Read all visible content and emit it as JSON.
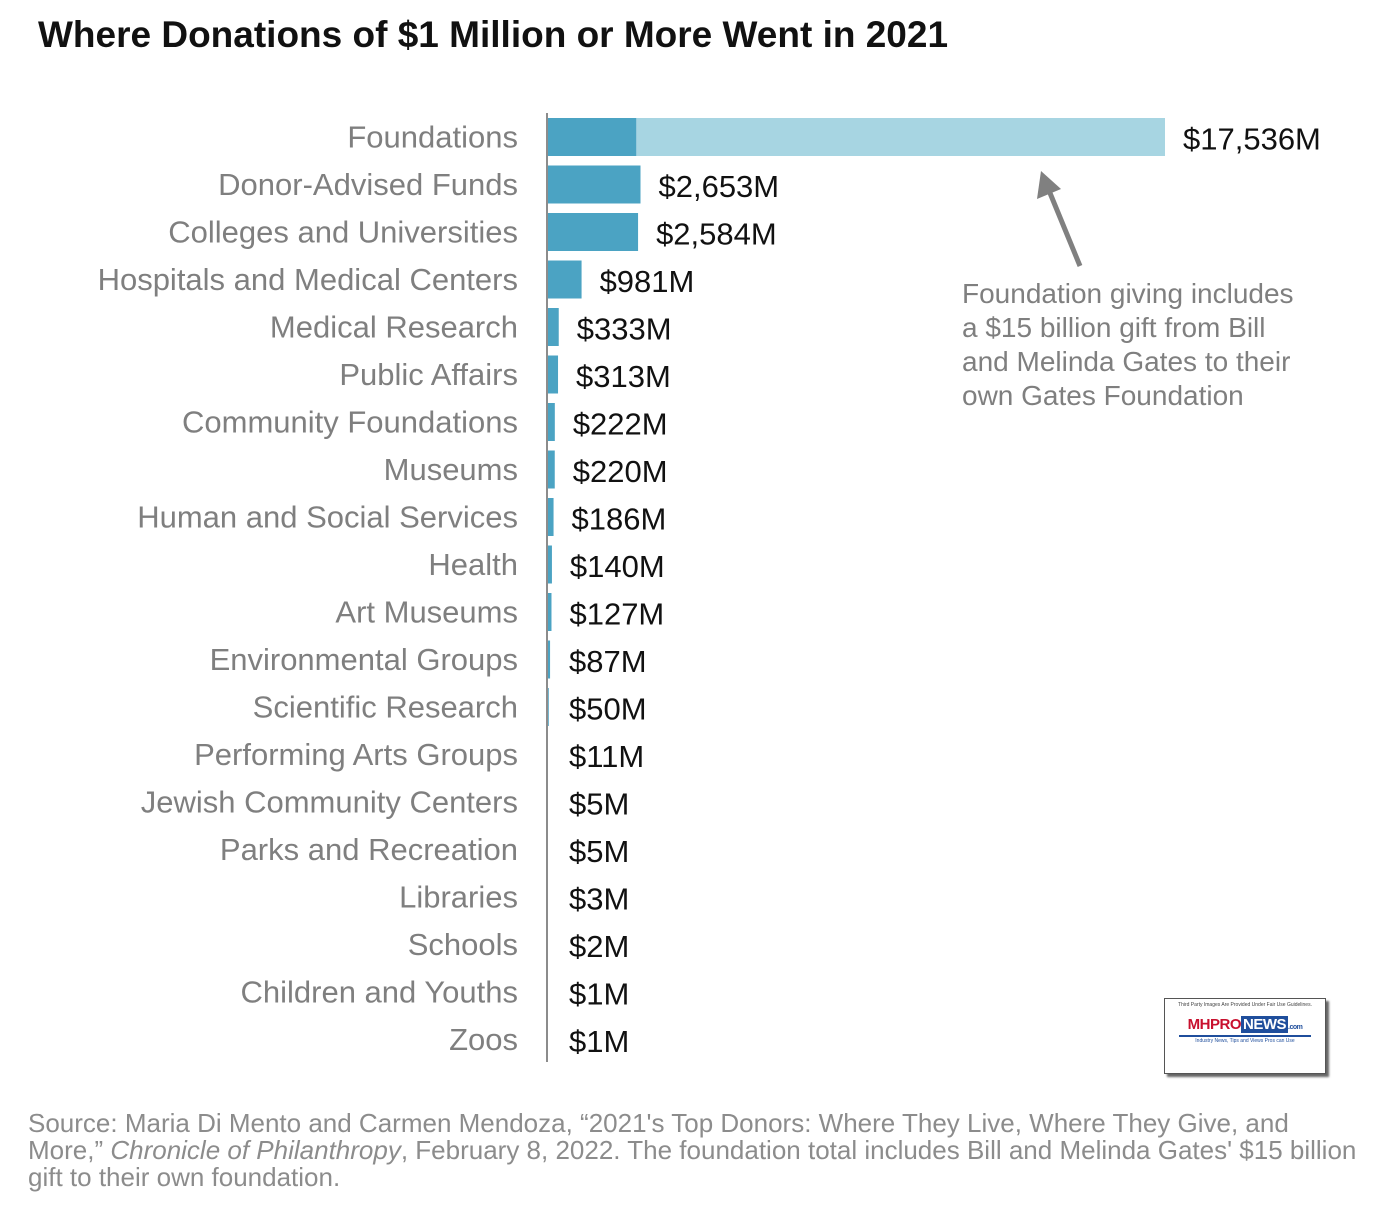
{
  "chart_data": {
    "type": "bar",
    "orientation": "horizontal",
    "title": "Where Donations of $1 Million or More Went in 2021",
    "categories": [
      "Foundations",
      "Donor-Advised Funds",
      "Colleges and Universities",
      "Hospitals and Medical Centers",
      "Medical Research",
      "Public Affairs",
      "Community Foundations",
      "Museums",
      "Human and Social Services",
      "Health",
      "Art Museums",
      "Environmental Groups",
      "Scientific Research",
      "Performing Arts Groups",
      "Jewish Community Centers",
      "Parks and Recreation",
      "Libraries",
      "Schools",
      "Children and Youths",
      "Zoos"
    ],
    "values": [
      17536,
      2653,
      2584,
      981,
      333,
      313,
      222,
      220,
      186,
      140,
      127,
      87,
      50,
      11,
      5,
      5,
      3,
      2,
      1,
      1
    ],
    "value_labels": [
      "$17,536M",
      "$2,653M",
      "$2,584M",
      "$981M",
      "$333M",
      "$313M",
      "$222M",
      "$220M",
      "$186M",
      "$140M",
      "$127M",
      "$87M",
      "$50M",
      "$11M",
      "$5M",
      "$5M",
      "$3M",
      "$2M",
      "$1M",
      "$1M"
    ],
    "highlight": {
      "category": "Foundations",
      "portion": 15000,
      "portion_color": "#a7d5e2"
    },
    "xlim": [
      0,
      17536
    ],
    "grid": false,
    "axes_visible": {
      "x": false,
      "y": true
    },
    "bar_color": "#4ba3c3",
    "annotation": {
      "lines": [
        "Foundation giving includes",
        "a $15 billion gift from Bill",
        "and Melinda Gates to their",
        "own Gates Foundation"
      ]
    }
  },
  "source": {
    "prefix": "Source: Maria Di Mento and Carmen Mendoza, “2021's Top Donors: Where They Live, Where They Give, and More,” ",
    "publication": "Chronicle of Philanthropy",
    "suffix": ", February 8, 2022. The foundation total includes Bill and Melinda Gates' $15 billion gift to their own foundation."
  },
  "logo": {
    "top_text": "Third Party Images Are Provided Under Fair Use Guidelines.",
    "mh": "MH",
    "pro": "PRO",
    "news": "NEWS",
    "com": ".com",
    "tagline": "Industry News, Tips and Views Pros can Use"
  }
}
